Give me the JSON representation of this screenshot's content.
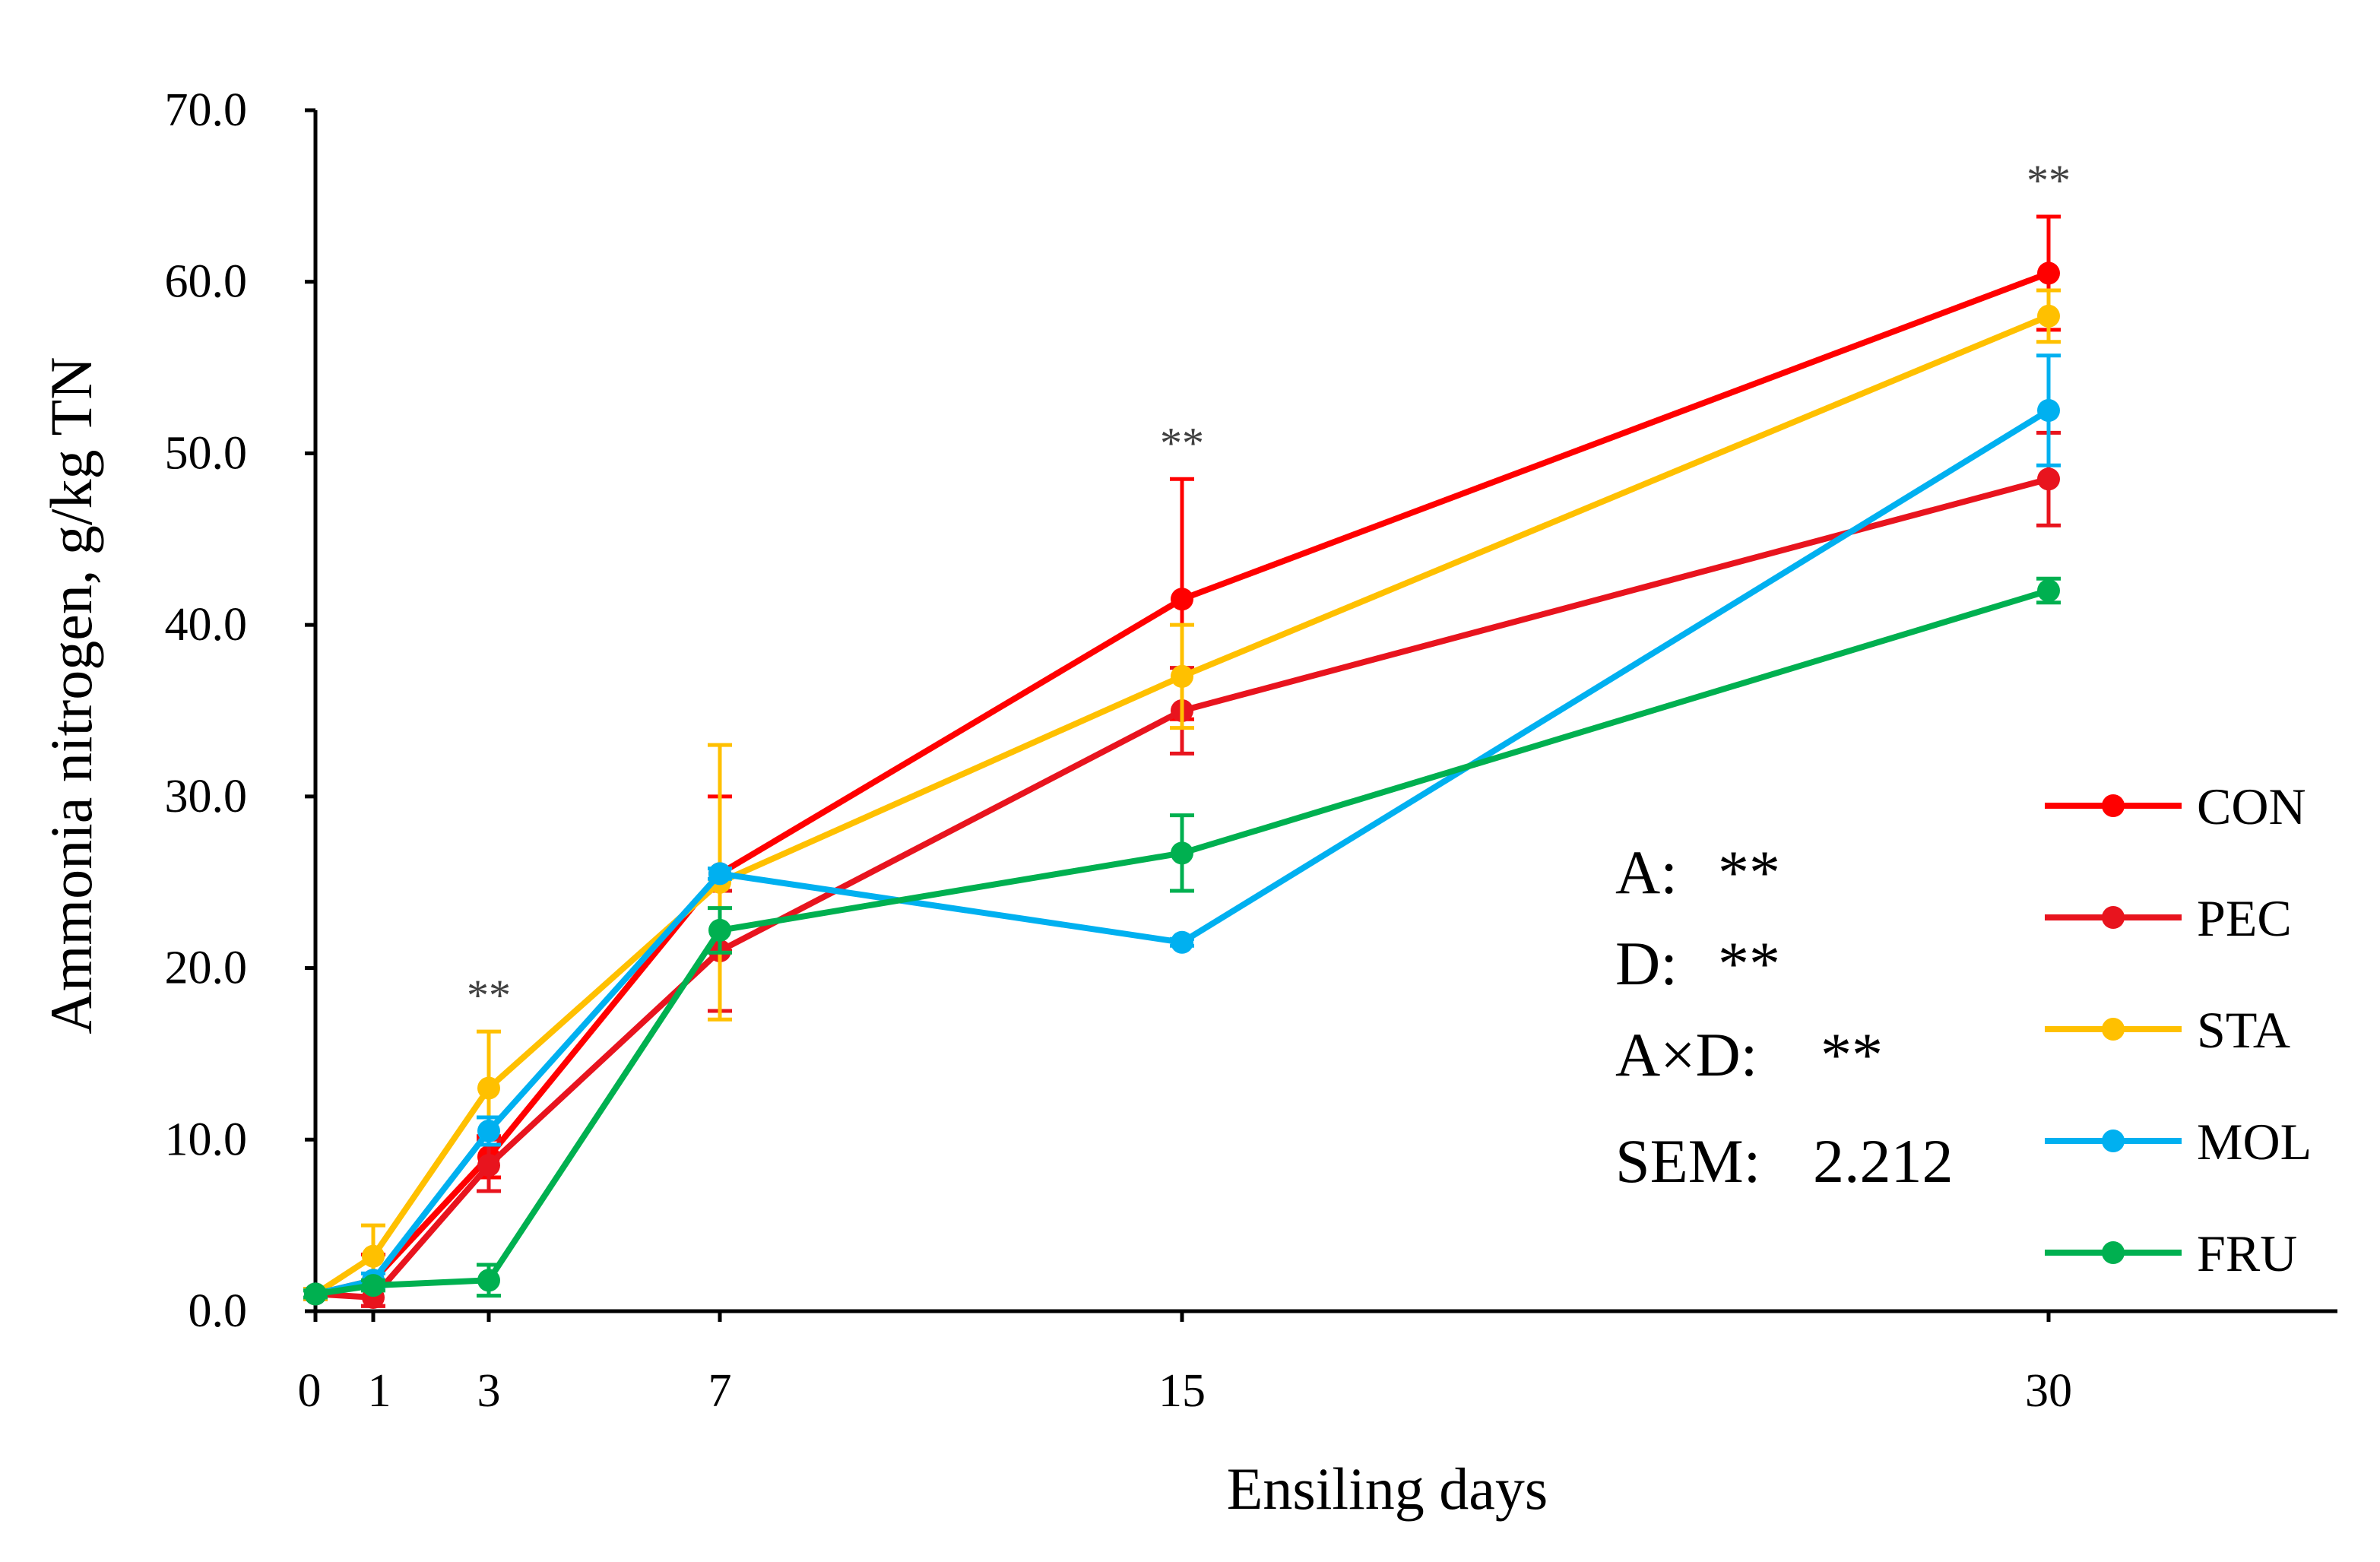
{
  "chart_data": {
    "type": "line",
    "title": "",
    "xlabel": "Ensiling days",
    "ylabel": "Ammonia nitrogen, g/kg TN",
    "x": [
      0,
      1,
      3,
      7,
      15,
      30
    ],
    "x_tick_labels": [
      "0",
      "1",
      "3",
      "7",
      "15",
      "30"
    ],
    "xlim": [
      0,
      35
    ],
    "ylim": [
      0,
      70
    ],
    "y_ticks": [
      0,
      10,
      20,
      30,
      40,
      50,
      60,
      70
    ],
    "y_tick_labels": [
      "0.0",
      "10.0",
      "20.0",
      "30.0",
      "40.0",
      "50.0",
      "60.0",
      "70.0"
    ],
    "grid": false,
    "legend_position": "right",
    "series": [
      {
        "name": "CON",
        "color": "#ff0000",
        "values": [
          1.0,
          1.8,
          9.0,
          25.5,
          41.5,
          60.5
        ],
        "errors": [
          0.3,
          1.5,
          1.2,
          4.5,
          7.0,
          3.3
        ]
      },
      {
        "name": "PEC",
        "color": "#e8141e",
        "values": [
          1.0,
          0.8,
          8.5,
          21.0,
          35.0,
          48.5
        ],
        "errors": [
          0.3,
          0.5,
          1.5,
          3.5,
          2.5,
          2.7
        ]
      },
      {
        "name": "STA",
        "color": "#ffc000",
        "values": [
          1.0,
          3.2,
          13.0,
          25.0,
          37.0,
          58.0
        ],
        "errors": [
          0.3,
          1.8,
          3.3,
          8.0,
          3.0,
          1.5
        ]
      },
      {
        "name": "MOL",
        "color": "#00b0f0",
        "values": [
          1.0,
          1.8,
          10.5,
          25.5,
          21.5,
          52.5
        ],
        "errors": [
          0.2,
          0.4,
          0.8,
          0.3,
          0.2,
          3.2
        ]
      },
      {
        "name": "FRU",
        "color": "#00b050",
        "values": [
          1.0,
          1.5,
          1.8,
          22.2,
          26.7,
          42.0
        ],
        "errors": [
          0.2,
          0.3,
          0.9,
          1.3,
          2.2,
          0.7
        ]
      }
    ],
    "significance_marks": [
      {
        "x": 3,
        "label": "**"
      },
      {
        "x": 15,
        "label": "**"
      },
      {
        "x": 30,
        "label": "**"
      }
    ]
  },
  "stats": [
    {
      "label": "A:",
      "value": "**"
    },
    {
      "label": "D:",
      "value": "**"
    },
    {
      "label": "A×D:",
      "value": "**"
    },
    {
      "label": "SEM:",
      "value": "2.212"
    }
  ]
}
